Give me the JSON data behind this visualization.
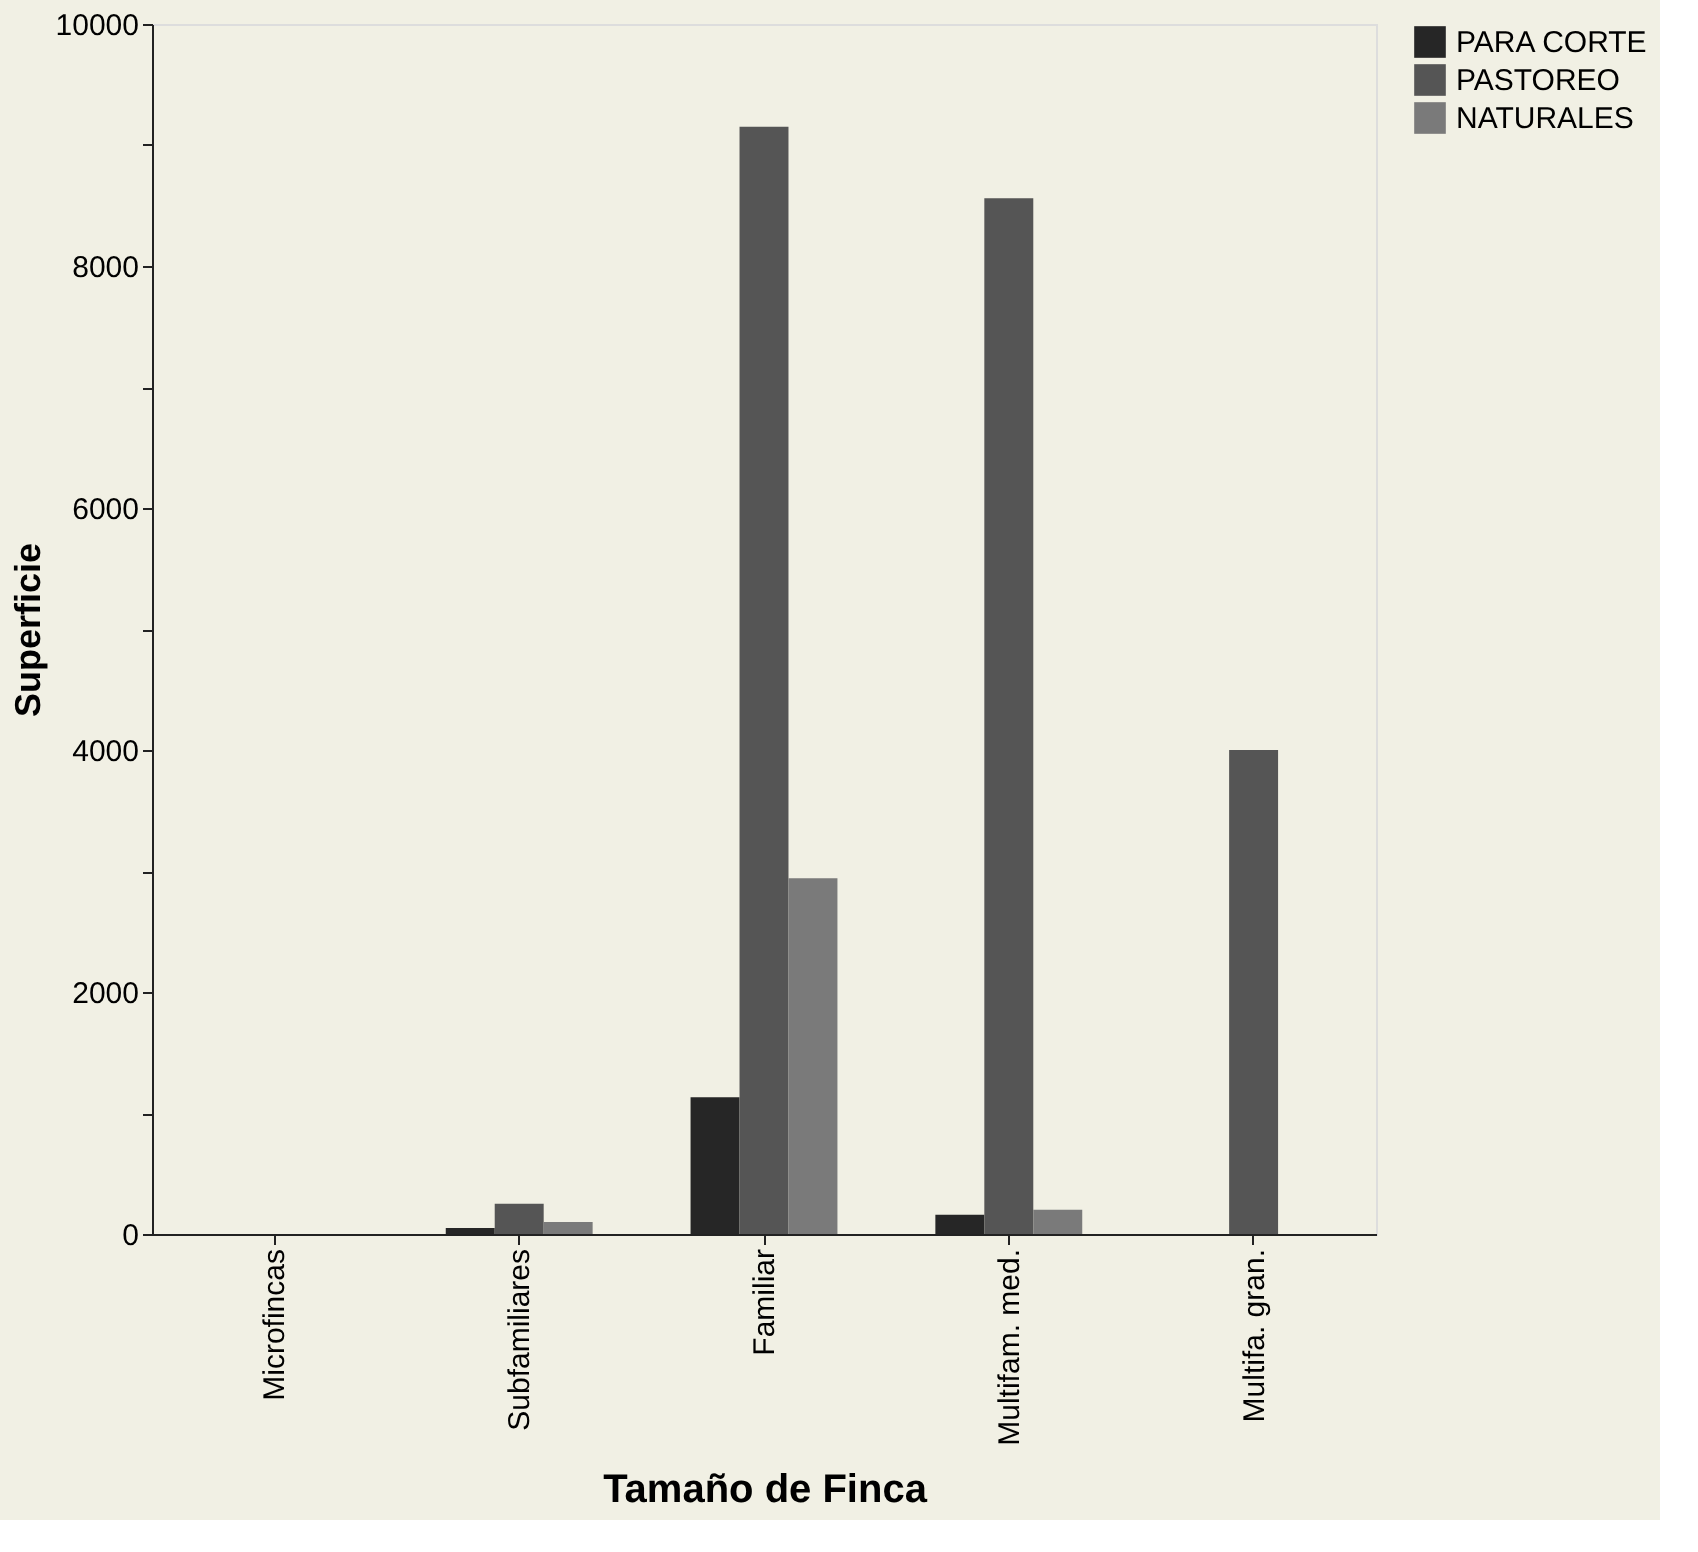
{
  "chart_data": {
    "type": "bar",
    "xlabel": "Tamaño de Finca",
    "ylabel": "Superficie",
    "categories": [
      "Microfincas",
      "Subfamiliares",
      "Familiar",
      "Multifam. med.",
      "Multifa. gran."
    ],
    "series": [
      {
        "name": "PARA CORTE",
        "color": "#262626",
        "values": [
          0,
          50,
          1130,
          160,
          0
        ]
      },
      {
        "name": "PASTOREO",
        "color": "#555555",
        "values": [
          0,
          250,
          9150,
          8560,
          4000
        ]
      },
      {
        "name": "NATURALES",
        "color": "#7a7a7a",
        "values": [
          0,
          100,
          2940,
          200,
          0
        ]
      }
    ],
    "ylim": [
      0,
      10000
    ],
    "yticks": [
      0,
      {
        "value": 1000,
        "label": null
      },
      2000,
      {
        "value": 3000,
        "label": null
      },
      4000,
      {
        "value": 5000,
        "label": null
      },
      6000,
      {
        "value": 7000,
        "label": null
      },
      8000,
      {
        "value": 9000,
        "label": null
      },
      10000
    ],
    "grid": false,
    "legend": "right"
  }
}
